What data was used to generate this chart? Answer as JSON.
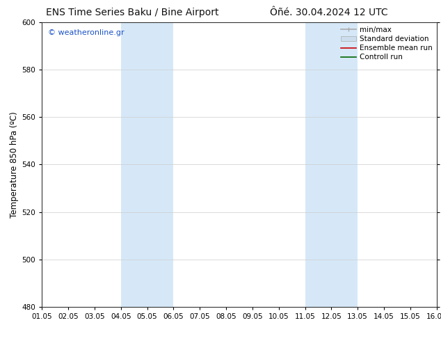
{
  "title_left": "ENS Time Series Baku / Bine Airport",
  "title_right": "Ôñé. 30.04.2024 12 UTC",
  "ylabel": "Temperature 850 hPa (ºC)",
  "xlim": [
    0,
    15
  ],
  "ylim": [
    480,
    600
  ],
  "yticks": [
    480,
    500,
    520,
    540,
    560,
    580,
    600
  ],
  "xtick_labels": [
    "01.05",
    "02.05",
    "03.05",
    "04.05",
    "05.05",
    "06.05",
    "07.05",
    "08.05",
    "09.05",
    "10.05",
    "11.05",
    "12.05",
    "13.05",
    "14.05",
    "15.05",
    "16.05"
  ],
  "shaded_bands": [
    {
      "x_start": 3,
      "x_end": 5,
      "color": "#d6e8f8"
    },
    {
      "x_start": 10,
      "x_end": 12,
      "color": "#d6e8f8"
    }
  ],
  "watermark_text": "© weatheronline.gr",
  "watermark_color": "#1a52c4",
  "legend_entries": [
    {
      "label": "min/max",
      "color": "#aaaaaa",
      "lw": 1.2,
      "style": "minmax"
    },
    {
      "label": "Standard deviation",
      "color": "#ccddee",
      "lw": 6,
      "style": "band"
    },
    {
      "label": "Ensemble mean run",
      "color": "#cc0000",
      "lw": 1.2,
      "style": "line"
    },
    {
      "label": "Controll run",
      "color": "#006600",
      "lw": 1.2,
      "style": "line"
    }
  ],
  "bg_color": "#ffffff",
  "spine_color": "#333333",
  "grid_color": "#cccccc",
  "title_fontsize": 10,
  "tick_fontsize": 7.5,
  "ylabel_fontsize": 8.5,
  "legend_fontsize": 7.5
}
